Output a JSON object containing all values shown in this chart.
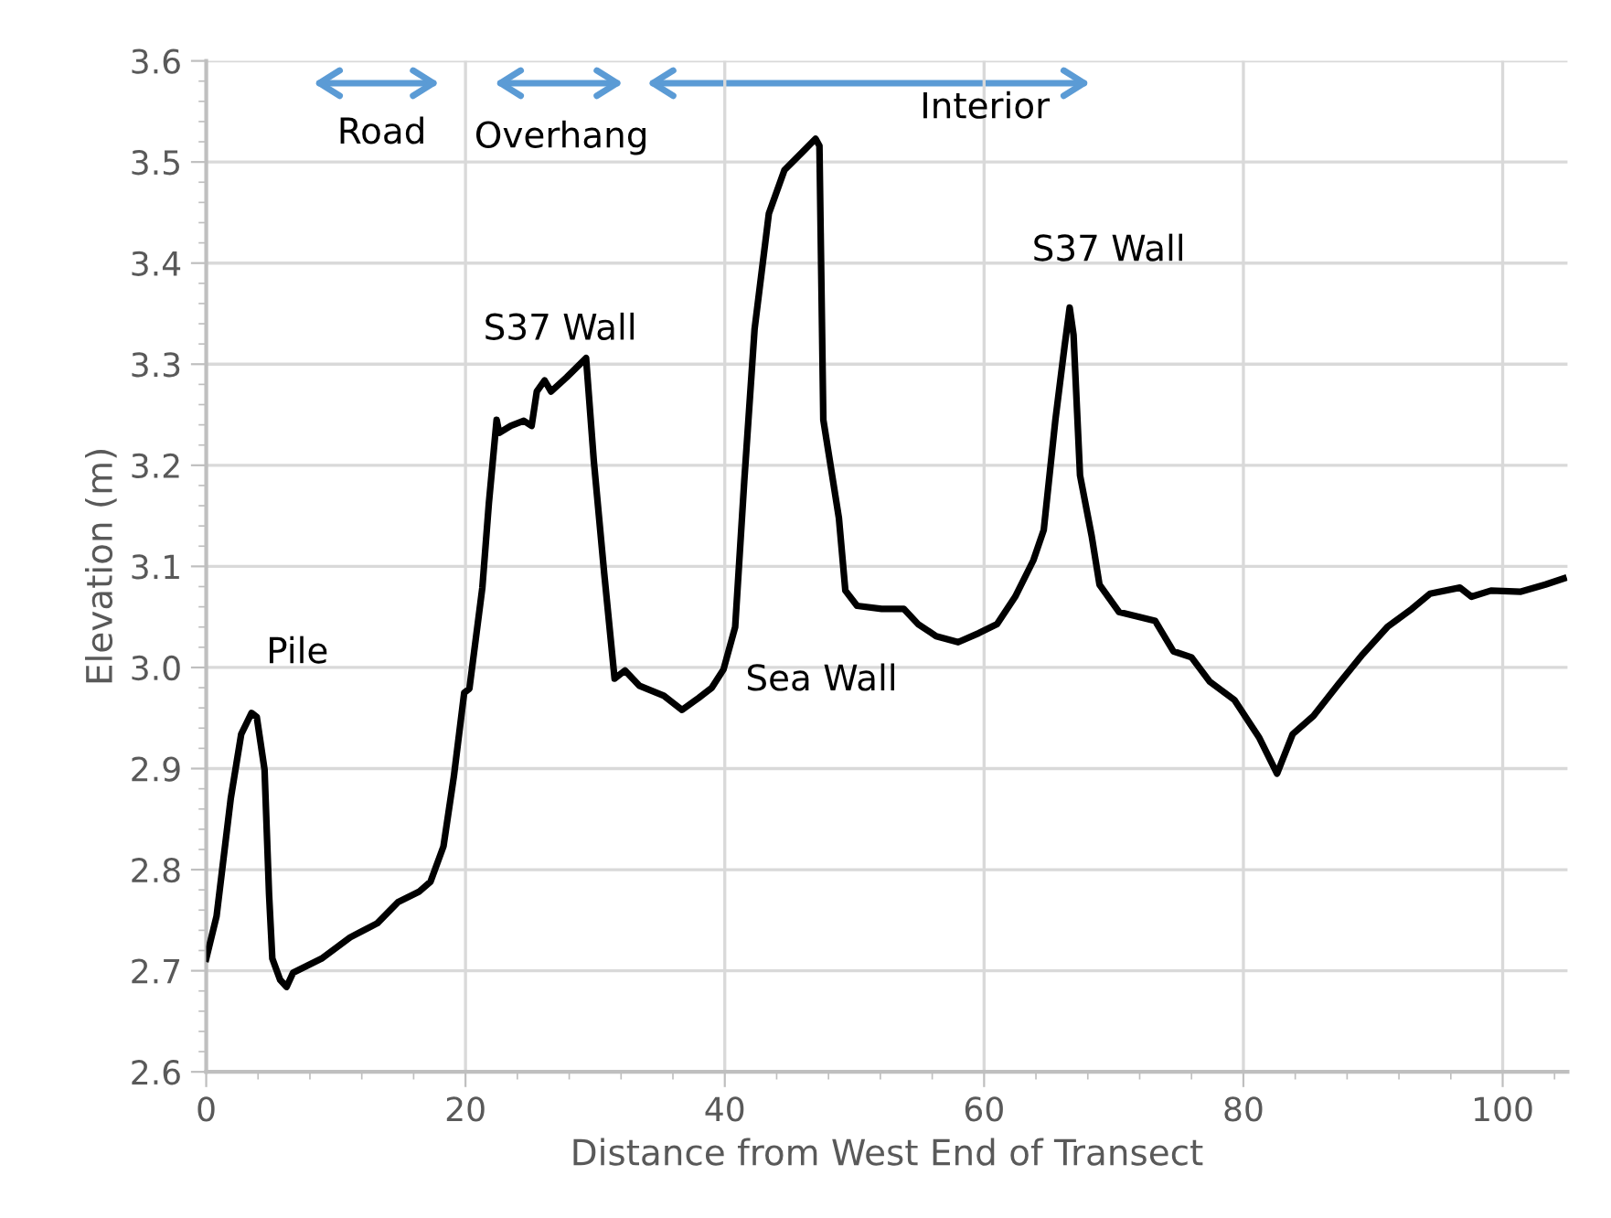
{
  "chart_data": {
    "type": "line",
    "xlabel": "Distance from West End of Transect",
    "ylabel": "Elevation (m)",
    "xlim": [
      0,
      105
    ],
    "xticks": [
      0,
      20,
      40,
      60,
      80,
      100
    ],
    "ylim": [
      2.6,
      3.6
    ],
    "yticks": [
      2.6,
      2.7,
      2.8,
      2.9,
      {
        "value": 3.0,
        "label": "3.0"
      },
      3.1,
      3.2,
      3.3,
      3.4,
      3.5,
      3.6
    ],
    "grid": true,
    "marker": "none",
    "line_style": "solid",
    "series": [
      {
        "color": "#000000",
        "x": [
          0,
          0.8,
          1.9,
          2.7,
          3.5,
          3.9,
          4.5,
          4.85,
          5.1,
          5.7,
          6.2,
          6.7,
          7.8,
          8.9,
          11.1,
          13.2,
          14.8,
          16.4,
          17.3,
          18.3,
          19.1,
          19.9,
          20.3,
          21.3,
          21.8,
          22.4,
          22.6,
          23.5,
          24.5,
          25.1,
          25.5,
          26.1,
          26.6,
          27.8,
          29.3,
          29.9,
          30.7,
          31.5,
          32.3,
          33.4,
          35.3,
          36.7,
          38.0,
          39.0,
          39.9,
          40.8,
          41.5,
          42.3,
          43.4,
          44.6,
          46.0,
          47.0,
          47.3,
          47.6,
          48.8,
          49.3,
          50.2,
          52.1,
          53.8,
          54.9,
          56.3,
          58.0,
          59.6,
          61.0,
          62.4,
          63.8,
          64.6,
          65.5,
          66.2,
          66.6,
          66.9,
          67.4,
          68.3,
          68.9,
          70.4,
          73.2,
          74.6,
          76.0,
          77.4,
          79.3,
          81.2,
          82.6,
          83.8,
          85.4,
          87.3,
          89.2,
          91.1,
          93.0,
          94.4,
          96.7,
          97.6,
          99.1,
          101.4,
          103.3,
          104.7
        ],
        "values": [
          2.712,
          2.754,
          2.871,
          2.934,
          2.955,
          2.951,
          2.899,
          2.775,
          2.712,
          2.691,
          2.684,
          2.698,
          2.705,
          2.712,
          2.733,
          2.747,
          2.768,
          2.778,
          2.788,
          2.823,
          2.892,
          2.975,
          2.979,
          3.079,
          3.162,
          3.245,
          3.232,
          3.239,
          3.244,
          3.239,
          3.273,
          3.284,
          3.273,
          3.287,
          3.306,
          3.204,
          3.093,
          2.989,
          2.997,
          2.982,
          2.972,
          2.958,
          2.97,
          2.98,
          2.998,
          3.04,
          3.184,
          3.335,
          3.449,
          3.492,
          3.51,
          3.523,
          3.516,
          3.245,
          3.148,
          3.076,
          3.061,
          3.058,
          3.058,
          3.043,
          3.031,
          3.025,
          3.034,
          3.043,
          3.07,
          3.106,
          3.136,
          3.245,
          3.317,
          3.356,
          3.329,
          3.19,
          3.13,
          3.082,
          3.055,
          3.046,
          3.016,
          3.01,
          2.986,
          2.968,
          2.931,
          2.895,
          2.934,
          2.952,
          2.983,
          3.013,
          3.04,
          3.058,
          3.073,
          3.079,
          3.07,
          3.076,
          3.075,
          3.082,
          3.088
        ]
      }
    ],
    "annotations": [
      "Pile",
      "S37 Wall",
      "Sea Wall",
      "S37 Wall",
      "Road",
      "Overhang",
      "Interior"
    ]
  }
}
